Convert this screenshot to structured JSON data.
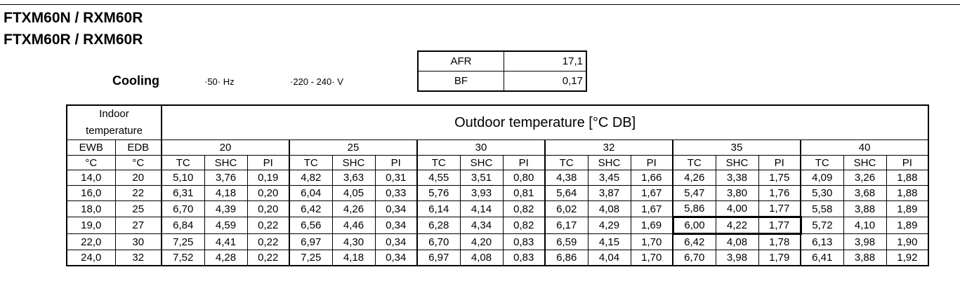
{
  "models": [
    "FTXM60N / RXM60R",
    "FTXM60R / RXM60R"
  ],
  "mode": "Cooling",
  "frequency": "·50· Hz",
  "voltage": "·220 - 240· V",
  "afr": {
    "label": "AFR",
    "value": "17,1"
  },
  "bf": {
    "label": "BF",
    "value": "0,17"
  },
  "table": {
    "indoor_header_line1": "Indoor",
    "indoor_header_line2": "temperature",
    "outdoor_header": "Outdoor temperature [°C DB]",
    "ewb_label": "EWB",
    "edb_label": "EDB",
    "unit_c": "°C",
    "outdoor_temps": [
      "20",
      "25",
      "30",
      "32",
      "35",
      "40"
    ],
    "col_labels": [
      "TC",
      "SHC",
      "PI"
    ],
    "highlight": {
      "row": 3,
      "group": 4
    },
    "rows": [
      {
        "ewb": "14,0",
        "edb": "20",
        "values": [
          [
            "5,10",
            "3,76",
            "0,19"
          ],
          [
            "4,82",
            "3,63",
            "0,31"
          ],
          [
            "4,55",
            "3,51",
            "0,80"
          ],
          [
            "4,38",
            "3,45",
            "1,66"
          ],
          [
            "4,26",
            "3,38",
            "1,75"
          ],
          [
            "4,09",
            "3,26",
            "1,88"
          ]
        ]
      },
      {
        "ewb": "16,0",
        "edb": "22",
        "values": [
          [
            "6,31",
            "4,18",
            "0,20"
          ],
          [
            "6,04",
            "4,05",
            "0,33"
          ],
          [
            "5,76",
            "3,93",
            "0,81"
          ],
          [
            "5,64",
            "3,87",
            "1,67"
          ],
          [
            "5,47",
            "3,80",
            "1,76"
          ],
          [
            "5,30",
            "3,68",
            "1,88"
          ]
        ]
      },
      {
        "ewb": "18,0",
        "edb": "25",
        "values": [
          [
            "6,70",
            "4,39",
            "0,20"
          ],
          [
            "6,42",
            "4,26",
            "0,34"
          ],
          [
            "6,14",
            "4,14",
            "0,82"
          ],
          [
            "6,02",
            "4,08",
            "1,67"
          ],
          [
            "5,86",
            "4,00",
            "1,77"
          ],
          [
            "5,58",
            "3,88",
            "1,89"
          ]
        ]
      },
      {
        "ewb": "19,0",
        "edb": "27",
        "values": [
          [
            "6,84",
            "4,59",
            "0,22"
          ],
          [
            "6,56",
            "4,46",
            "0,34"
          ],
          [
            "6,28",
            "4,34",
            "0,82"
          ],
          [
            "6,17",
            "4,29",
            "1,69"
          ],
          [
            "6,00",
            "4,22",
            "1,77"
          ],
          [
            "5,72",
            "4,10",
            "1,89"
          ]
        ]
      },
      {
        "ewb": "22,0",
        "edb": "30",
        "values": [
          [
            "7,25",
            "4,41",
            "0,22"
          ],
          [
            "6,97",
            "4,30",
            "0,34"
          ],
          [
            "6,70",
            "4,20",
            "0,83"
          ],
          [
            "6,59",
            "4,15",
            "1,70"
          ],
          [
            "6,42",
            "4,08",
            "1,78"
          ],
          [
            "6,13",
            "3,98",
            "1,90"
          ]
        ]
      },
      {
        "ewb": "24,0",
        "edb": "32",
        "values": [
          [
            "7,52",
            "4,28",
            "0,22"
          ],
          [
            "7,25",
            "4,18",
            "0,34"
          ],
          [
            "6,97",
            "4,08",
            "0,83"
          ],
          [
            "6,86",
            "4,04",
            "1,70"
          ],
          [
            "6,70",
            "3,98",
            "1,79"
          ],
          [
            "6,41",
            "3,88",
            "1,92"
          ]
        ]
      }
    ]
  }
}
